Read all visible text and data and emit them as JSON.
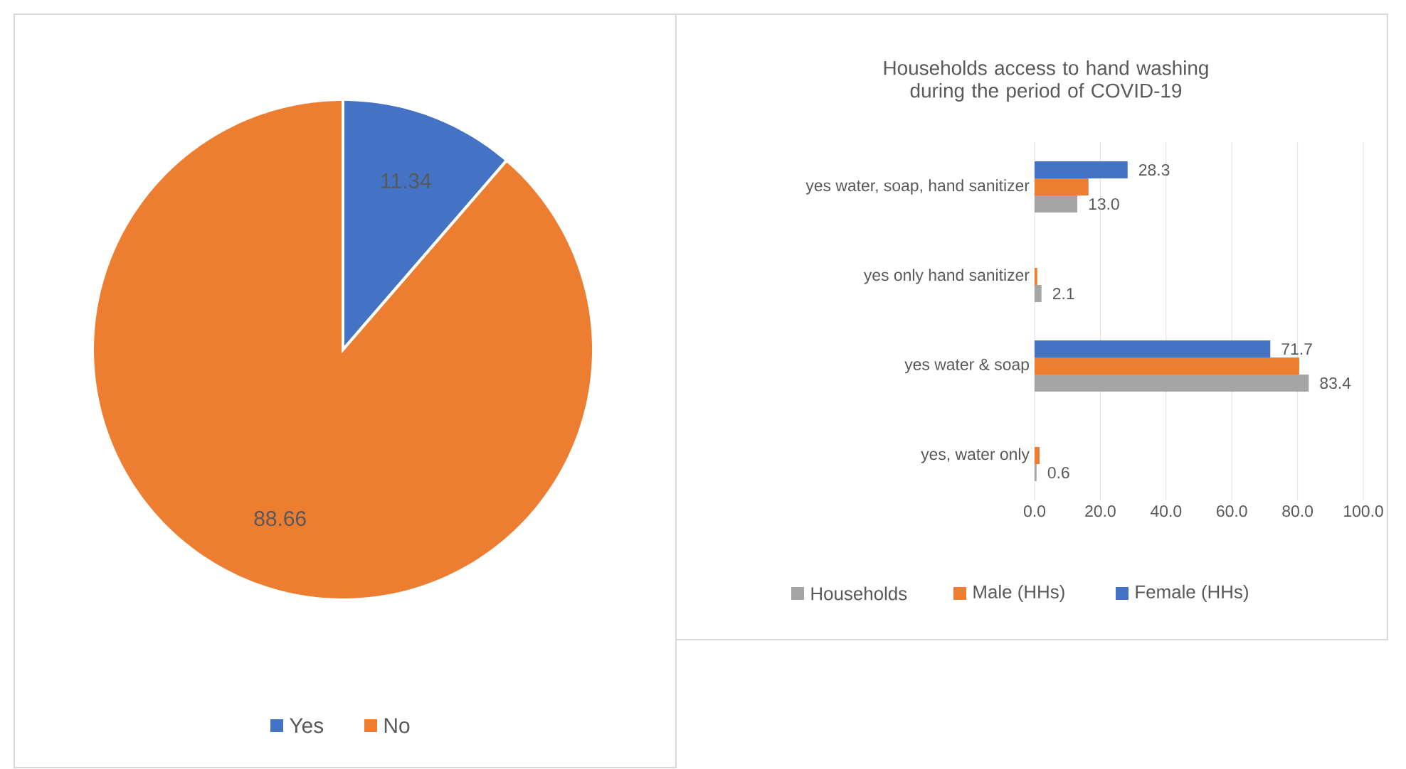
{
  "chart_data": [
    {
      "type": "pie",
      "categories": [
        "Yes",
        "No"
      ],
      "values": [
        11.34,
        88.66
      ],
      "colors": [
        "#4472c4",
        "#ed7d31"
      ],
      "data_labels": true,
      "legend": "bottom"
    },
    {
      "type": "bar",
      "orientation": "horizontal",
      "title": "Households access to hand washing during the period of COVID-19",
      "categories": [
        "yes water, soap, hand sanitizer",
        "yes only hand sanitizer",
        "yes water & soap",
        "yes, water only"
      ],
      "series": [
        {
          "name": "Households",
          "color": "#a5a5a5",
          "values": [
            13.0,
            2.1,
            83.4,
            0.6
          ],
          "value_labels": [
            "13.0",
            "2.1",
            "83.4",
            "0.6"
          ]
        },
        {
          "name": "Male (HHs)",
          "color": "#ed7d31",
          "values": [
            16.4,
            0.8,
            80.5,
            1.5
          ],
          "value_labels": [
            null,
            null,
            null,
            null
          ]
        },
        {
          "name": "Female (HHs)",
          "color": "#4472c4",
          "values": [
            28.3,
            null,
            71.7,
            null
          ],
          "value_labels": [
            "28.3",
            null,
            "71.7",
            null
          ]
        }
      ],
      "xlim": [
        0,
        100
      ],
      "xticks": [
        {
          "value": 0,
          "label": "0.0"
        },
        {
          "value": 20,
          "label": "20.0"
        },
        {
          "value": 40,
          "label": "40.0"
        },
        {
          "value": 60,
          "label": "60.0"
        },
        {
          "value": 80,
          "label": "80.0"
        },
        {
          "value": 100,
          "label": "100.0"
        }
      ],
      "grid": "x",
      "legend": "bottom"
    }
  ]
}
